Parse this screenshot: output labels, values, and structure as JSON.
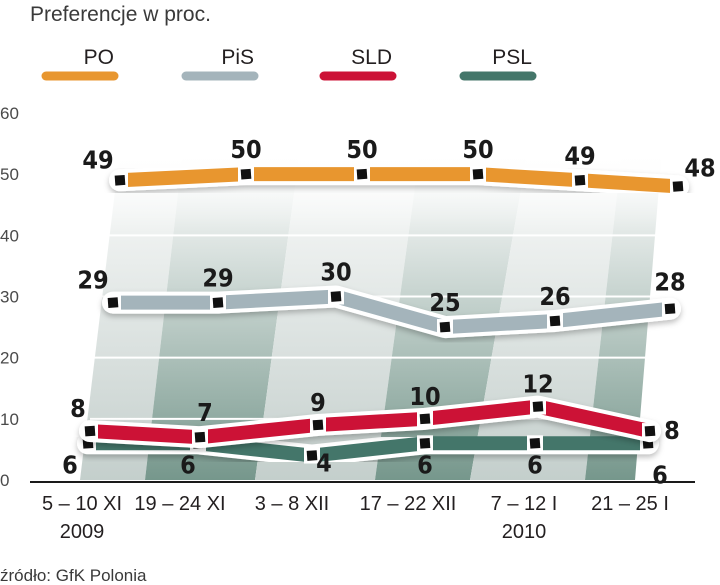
{
  "chart_data": {
    "type": "line",
    "title": "",
    "subtitle": "Preferencje w proc.",
    "source": "źródło: GfK Polonia",
    "xlabel": "",
    "ylabel": "",
    "ylim": [
      0,
      60
    ],
    "yticks": [
      0,
      10,
      20,
      30,
      40,
      50,
      60
    ],
    "grid": true,
    "legend_position": "top",
    "categories": [
      "5 – 10 XI",
      "19 – 24 XI",
      "3 – 8 XII",
      "17 – 22 XII",
      "7 – 12 I",
      "21 – 25 I"
    ],
    "year_labels": [
      {
        "category_index": 0,
        "text": "2009"
      },
      {
        "category_index": 4,
        "text": "2010"
      }
    ],
    "series": [
      {
        "name": "PO",
        "color": "#e8962f",
        "values": [
          49,
          50,
          50,
          50,
          49,
          48
        ]
      },
      {
        "name": "PiS",
        "color": "#a4b4bb",
        "values": [
          29,
          29,
          30,
          25,
          26,
          28
        ]
      },
      {
        "name": "SLD",
        "color": "#cc1236",
        "values": [
          8,
          7,
          9,
          10,
          12,
          8
        ]
      },
      {
        "name": "PSL",
        "color": "#44766a",
        "values": [
          6,
          6,
          4,
          6,
          6,
          6
        ]
      }
    ]
  }
}
